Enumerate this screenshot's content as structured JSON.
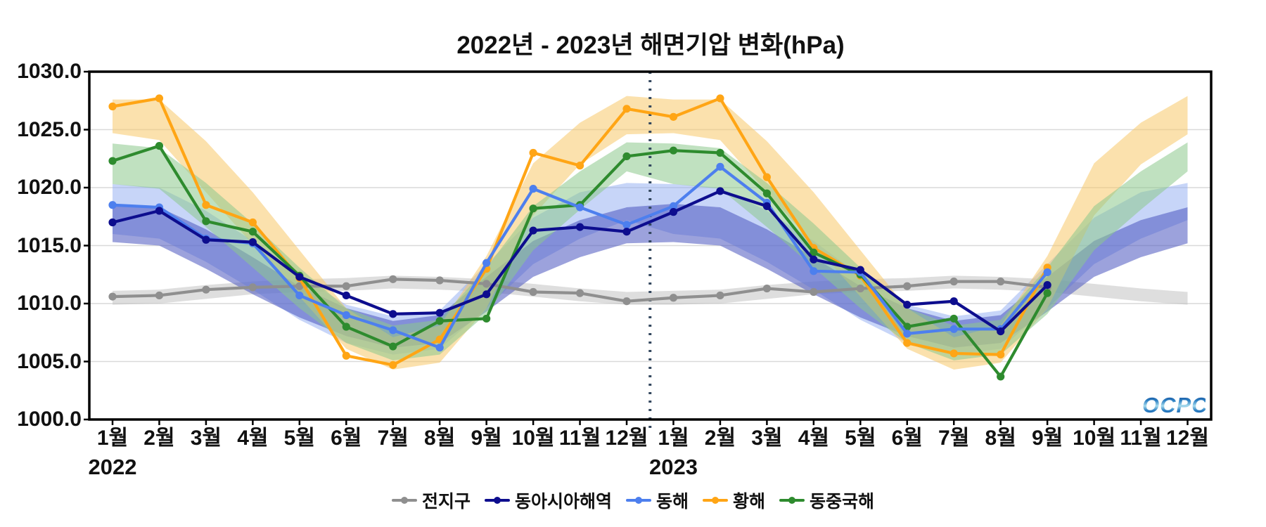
{
  "title": "2022년 - 2023년 해면기압 변화(hPa)",
  "watermark": "OCPC",
  "chart_data": {
    "type": "line",
    "title": "2022년 - 2023년 해면기압 변화(hPa)",
    "unit": "hPa",
    "ylim": [
      1000,
      1030
    ],
    "grid": "horizontal",
    "legend_position": "bottom-center",
    "y_tick_labels": [
      "1030.0",
      "1025.0",
      "1020.0",
      "1015.0",
      "1010.0",
      "1005.0",
      "1000.0"
    ],
    "y_tick_values": [
      1030,
      1025,
      1020,
      1015,
      1010,
      1005,
      1000
    ],
    "x_labels": [
      "1월",
      "2월",
      "3월",
      "4월",
      "5월",
      "6월",
      "7월",
      "8월",
      "9월",
      "10월",
      "11월",
      "12월",
      "1월",
      "2월",
      "3월",
      "4월",
      "5월",
      "6월",
      "7월",
      "8월",
      "9월",
      "10월",
      "11월",
      "12월"
    ],
    "year_labels": [
      {
        "text": "2022",
        "month_index": 0
      },
      {
        "text": "2023",
        "month_index": 12
      }
    ],
    "year_divider_between": [
      11,
      12
    ],
    "divider_color": "#33475e",
    "grid_color": "#d9d9d9",
    "axis_color": "#000000",
    "note": "Lines show monthly sea-level pressure Jan 2022 - Sep 2023; shaded ribbons show climatological range repeating annually through Dec 2023.",
    "band_draw_order": [
      0,
      2,
      1,
      3,
      4
    ],
    "line_draw_order": [
      0,
      3,
      4,
      2,
      1
    ],
    "series": [
      {
        "name": "전지구",
        "color": "#8f8f8f",
        "band_color": "#bdbdbd",
        "band_opacity": 0.5,
        "values": [
          1010.6,
          1010.7,
          1011.2,
          1011.4,
          1011.5,
          1011.5,
          1012.1,
          1012.0,
          1011.7,
          1011.0,
          1010.9,
          1010.2,
          1010.5,
          1010.7,
          1011.3,
          1011.0,
          1011.3,
          1011.5,
          1011.9,
          1011.9,
          1011.4,
          null,
          null,
          null
        ],
        "band_lower_monthly": [
          1009.9,
          1010.0,
          1010.4,
          1010.8,
          1011.0,
          1011.1,
          1011.3,
          1011.2,
          1011.0,
          1010.6,
          1010.2,
          1009.9
        ],
        "band_upper_monthly": [
          1011.1,
          1011.2,
          1011.6,
          1011.9,
          1012.1,
          1012.2,
          1012.4,
          1012.3,
          1012.1,
          1011.7,
          1011.3,
          1011.0
        ]
      },
      {
        "name": "동아시아해역",
        "color": "#0d0d8e",
        "band_color": "#4a55c0",
        "band_opacity": 0.55,
        "values": [
          1017.0,
          1018.0,
          1015.5,
          1015.3,
          1012.3,
          1010.7,
          1009.1,
          1009.2,
          1010.8,
          1016.3,
          1016.6,
          1016.2,
          1017.9,
          1019.7,
          1018.4,
          1013.8,
          1012.9,
          1009.9,
          1010.2,
          1007.6,
          1011.6,
          null,
          null,
          null
        ],
        "band_lower_monthly": [
          1015.3,
          1015.0,
          1013.0,
          1010.8,
          1008.8,
          1007.2,
          1006.2,
          1006.6,
          1009.3,
          1012.3,
          1014.0,
          1015.2
        ],
        "band_upper_monthly": [
          1018.6,
          1018.3,
          1016.4,
          1014.0,
          1011.5,
          1009.6,
          1008.5,
          1009.0,
          1012.3,
          1015.4,
          1017.2,
          1018.3
        ]
      },
      {
        "name": "동해",
        "color": "#4d7fee",
        "band_color": "#8fabf2",
        "band_opacity": 0.5,
        "values": [
          1018.5,
          1018.3,
          1015.6,
          1015.2,
          1010.7,
          1009.0,
          1007.7,
          1006.2,
          1013.5,
          1019.9,
          1018.3,
          1016.8,
          1018.4,
          1021.8,
          1018.7,
          1012.8,
          1012.7,
          1007.4,
          1007.8,
          1007.8,
          1012.7,
          null,
          null,
          null
        ],
        "band_lower_monthly": [
          1016.0,
          1015.6,
          1013.6,
          1011.2,
          1008.6,
          1006.6,
          1005.6,
          1006.1,
          1009.6,
          1013.4,
          1015.6,
          1017.2
        ],
        "band_upper_monthly": [
          1020.3,
          1020.0,
          1018.0,
          1015.4,
          1012.4,
          1009.9,
          1008.9,
          1009.4,
          1013.4,
          1017.4,
          1019.6,
          1020.4
        ]
      },
      {
        "name": "황해",
        "color": "#ffa515",
        "band_color": "#f8c96a",
        "band_opacity": 0.55,
        "values": [
          1027.0,
          1027.7,
          1018.5,
          1017.0,
          1012.2,
          1005.5,
          1004.7,
          1006.9,
          1013.0,
          1023.0,
          1021.9,
          1026.8,
          1026.1,
          1027.7,
          1020.9,
          1014.8,
          1012.4,
          1006.6,
          1005.7,
          1005.6,
          1013.1,
          null,
          null,
          null
        ],
        "band_lower_monthly": [
          1024.7,
          1024.1,
          1019.6,
          1015.1,
          1010.6,
          1006.1,
          1004.3,
          1004.9,
          1009.6,
          1017.6,
          1022.0,
          1024.6
        ],
        "band_upper_monthly": [
          1027.6,
          1027.6,
          1024.0,
          1019.6,
          1014.6,
          1009.6,
          1007.1,
          1008.1,
          1014.1,
          1022.1,
          1025.6,
          1027.9
        ]
      },
      {
        "name": "동중국해",
        "color": "#2e8b2e",
        "band_color": "#8cc98c",
        "band_opacity": 0.55,
        "values": [
          1022.3,
          1023.6,
          1017.1,
          1016.2,
          1012.4,
          1008.0,
          1006.3,
          1008.5,
          1008.7,
          1018.2,
          1018.5,
          1022.7,
          1023.2,
          1023.0,
          1019.5,
          1014.4,
          1012.5,
          1008.0,
          1008.7,
          1003.7,
          1010.9,
          null,
          null,
          null
        ],
        "band_lower_monthly": [
          1020.3,
          1019.9,
          1016.6,
          1013.1,
          1009.6,
          1006.6,
          1005.1,
          1005.6,
          1009.1,
          1014.6,
          1018.1,
          1021.4
        ],
        "band_upper_monthly": [
          1023.8,
          1023.4,
          1020.4,
          1016.9,
          1013.1,
          1009.6,
          1008.1,
          1008.6,
          1013.1,
          1018.4,
          1021.4,
          1023.9
        ]
      }
    ]
  }
}
